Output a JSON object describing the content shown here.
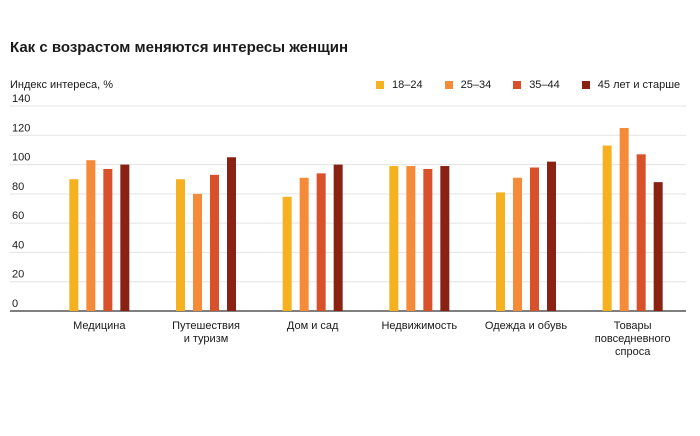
{
  "chart_data": {
    "type": "bar",
    "title": "Как с возрастом меняются интересы женщин",
    "ylabel": "Индекс интереса, %",
    "xlabel": "",
    "ylim": [
      0,
      140
    ],
    "yticks": [
      0,
      20,
      40,
      60,
      80,
      100,
      120,
      140
    ],
    "grid": true,
    "legend_position": "top-right",
    "categories": [
      [
        "Медицина"
      ],
      [
        "Путешествия",
        "и туризм"
      ],
      [
        "Дом и сад"
      ],
      [
        "Недвижимость"
      ],
      [
        "Одежда и обувь"
      ],
      [
        "Товары",
        "повседневного",
        "спроса"
      ]
    ],
    "series": [
      {
        "name": "18–24",
        "color": "#f5b120",
        "values": [
          90,
          90,
          78,
          99,
          81,
          113
        ]
      },
      {
        "name": "25–34",
        "color": "#f58b38",
        "values": [
          103,
          80,
          91,
          99,
          91,
          125
        ]
      },
      {
        "name": "35–44",
        "color": "#d9512a",
        "values": [
          97,
          93,
          94,
          97,
          98,
          107
        ]
      },
      {
        "name": "45 лет и старше",
        "color": "#8a2213",
        "values": [
          100,
          105,
          100,
          99,
          102,
          88
        ]
      }
    ]
  }
}
